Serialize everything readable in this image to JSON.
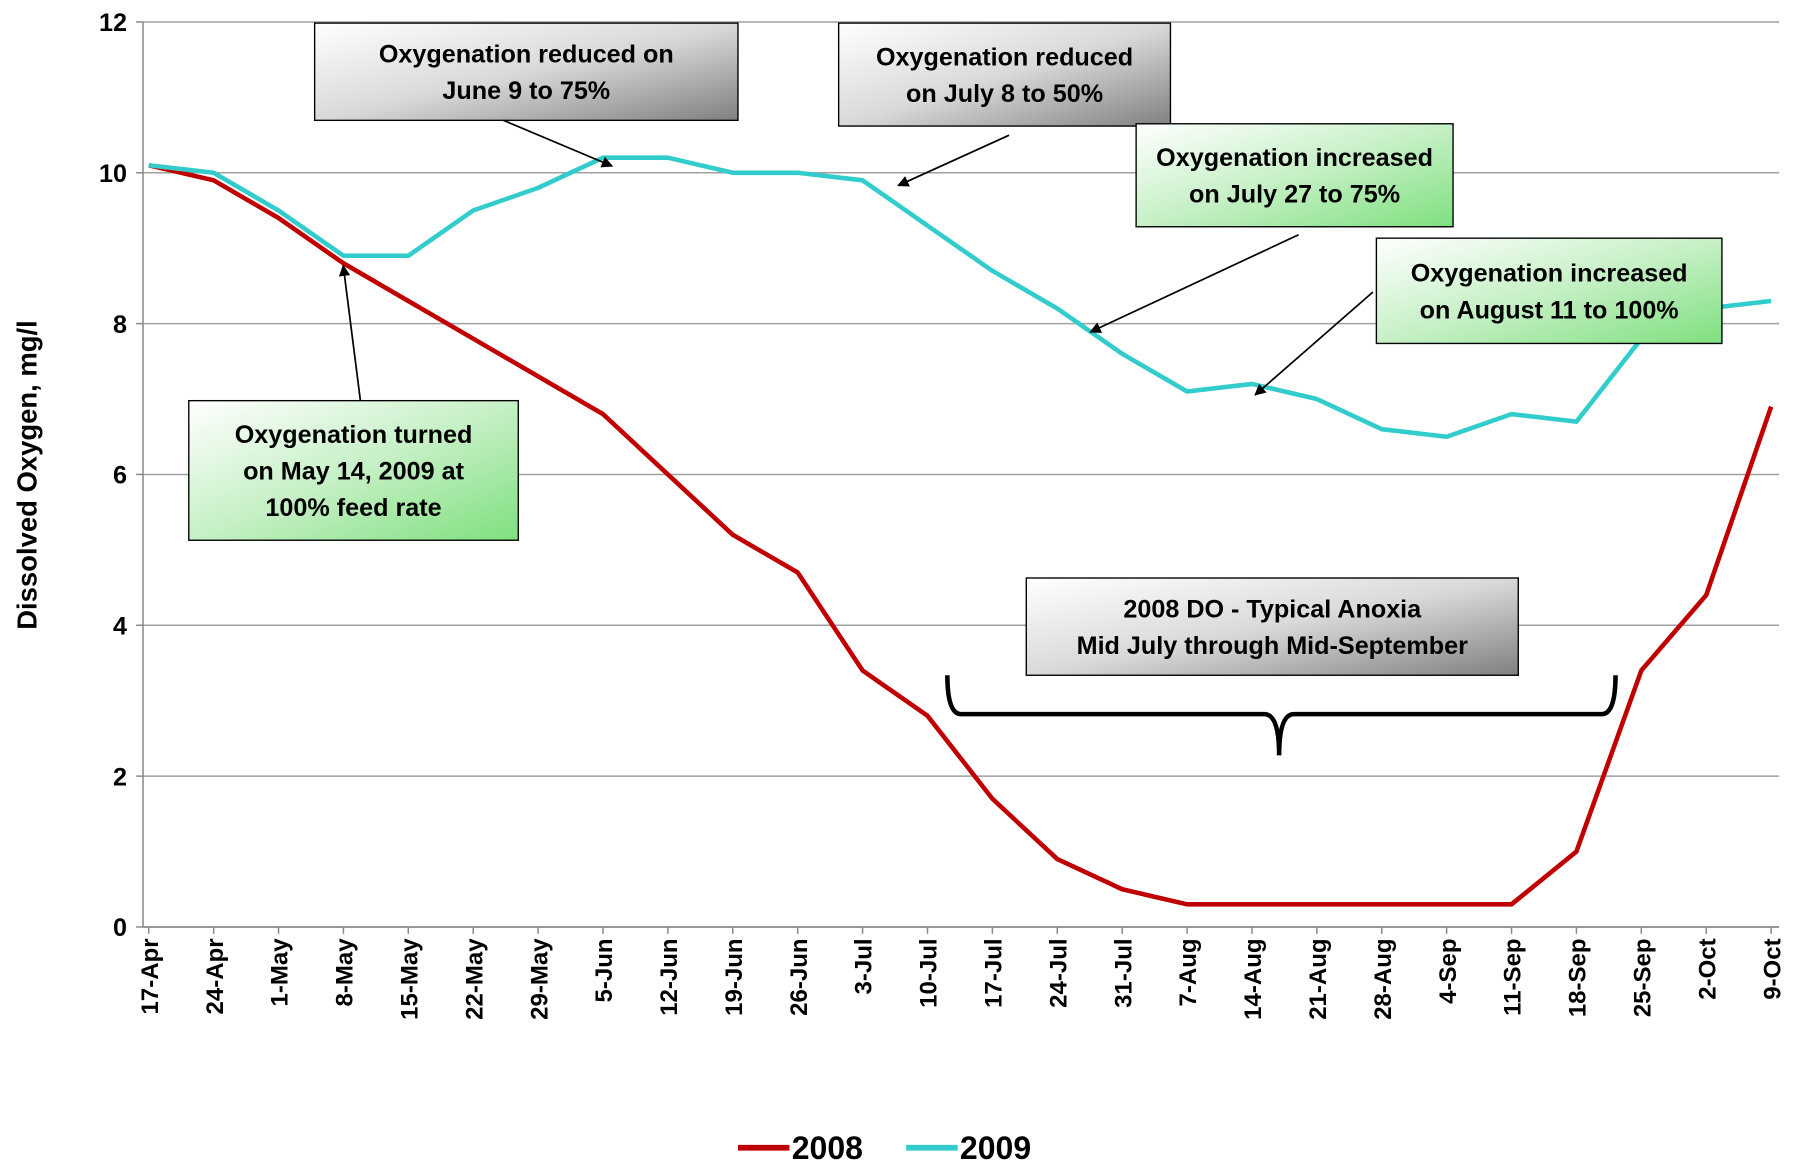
{
  "chart_data": {
    "type": "line",
    "y_label": "Dissolved Oxygen, mg/l",
    "categories": [
      "17-Apr",
      "24-Apr",
      "1-May",
      "8-May",
      "15-May",
      "22-May",
      "29-May",
      "5-Jun",
      "12-Jun",
      "19-Jun",
      "26-Jun",
      "3-Jul",
      "10-Jul",
      "17-Jul",
      "24-Jul",
      "31-Jul",
      "7-Aug",
      "14-Aug",
      "21-Aug",
      "28-Aug",
      "4-Sep",
      "11-Sep",
      "18-Sep",
      "25-Sep",
      "2-Oct",
      "9-Oct"
    ],
    "series": [
      {
        "name": "2008",
        "color": "#c00000",
        "values": [
          10.1,
          9.9,
          9.4,
          8.8,
          8.3,
          7.8,
          7.3,
          6.8,
          6.0,
          5.2,
          4.7,
          3.4,
          2.8,
          1.7,
          0.9,
          0.5,
          0.3,
          0.3,
          0.3,
          0.3,
          0.3,
          0.3,
          1.0,
          3.4,
          4.4,
          6.9
        ]
      },
      {
        "name": "2009",
        "color": "#33cccc",
        "values": [
          10.1,
          10.0,
          9.5,
          8.9,
          8.9,
          9.5,
          9.8,
          10.2,
          10.2,
          10.0,
          10.0,
          9.9,
          9.3,
          8.7,
          8.2,
          7.6,
          7.1,
          7.2,
          7.0,
          6.6,
          6.5,
          6.8,
          6.7,
          7.8,
          8.2,
          8.3
        ]
      }
    ],
    "ylim": [
      0,
      12
    ],
    "yticks": [
      0,
      2,
      4,
      6,
      8,
      10,
      12
    ],
    "grid": true,
    "legend": "bottom",
    "annotations": [
      {
        "lines": [
          "Oxygenation reduced on",
          "June 9 to 75%"
        ]
      },
      {
        "lines": [
          "Oxygenation reduced",
          "on July 8 to 50%"
        ]
      },
      {
        "lines": [
          "Oxygenation increased",
          "on July 27 to 75%"
        ]
      },
      {
        "lines": [
          "Oxygenation increased",
          "on August 11 to 100%"
        ]
      },
      {
        "lines": [
          "Oxygenation turned",
          "on May 14, 2009 at",
          "100% feed rate"
        ]
      },
      {
        "lines": [
          "2008 DO - Typical Anoxia",
          "Mid July through Mid-September"
        ]
      }
    ]
  }
}
